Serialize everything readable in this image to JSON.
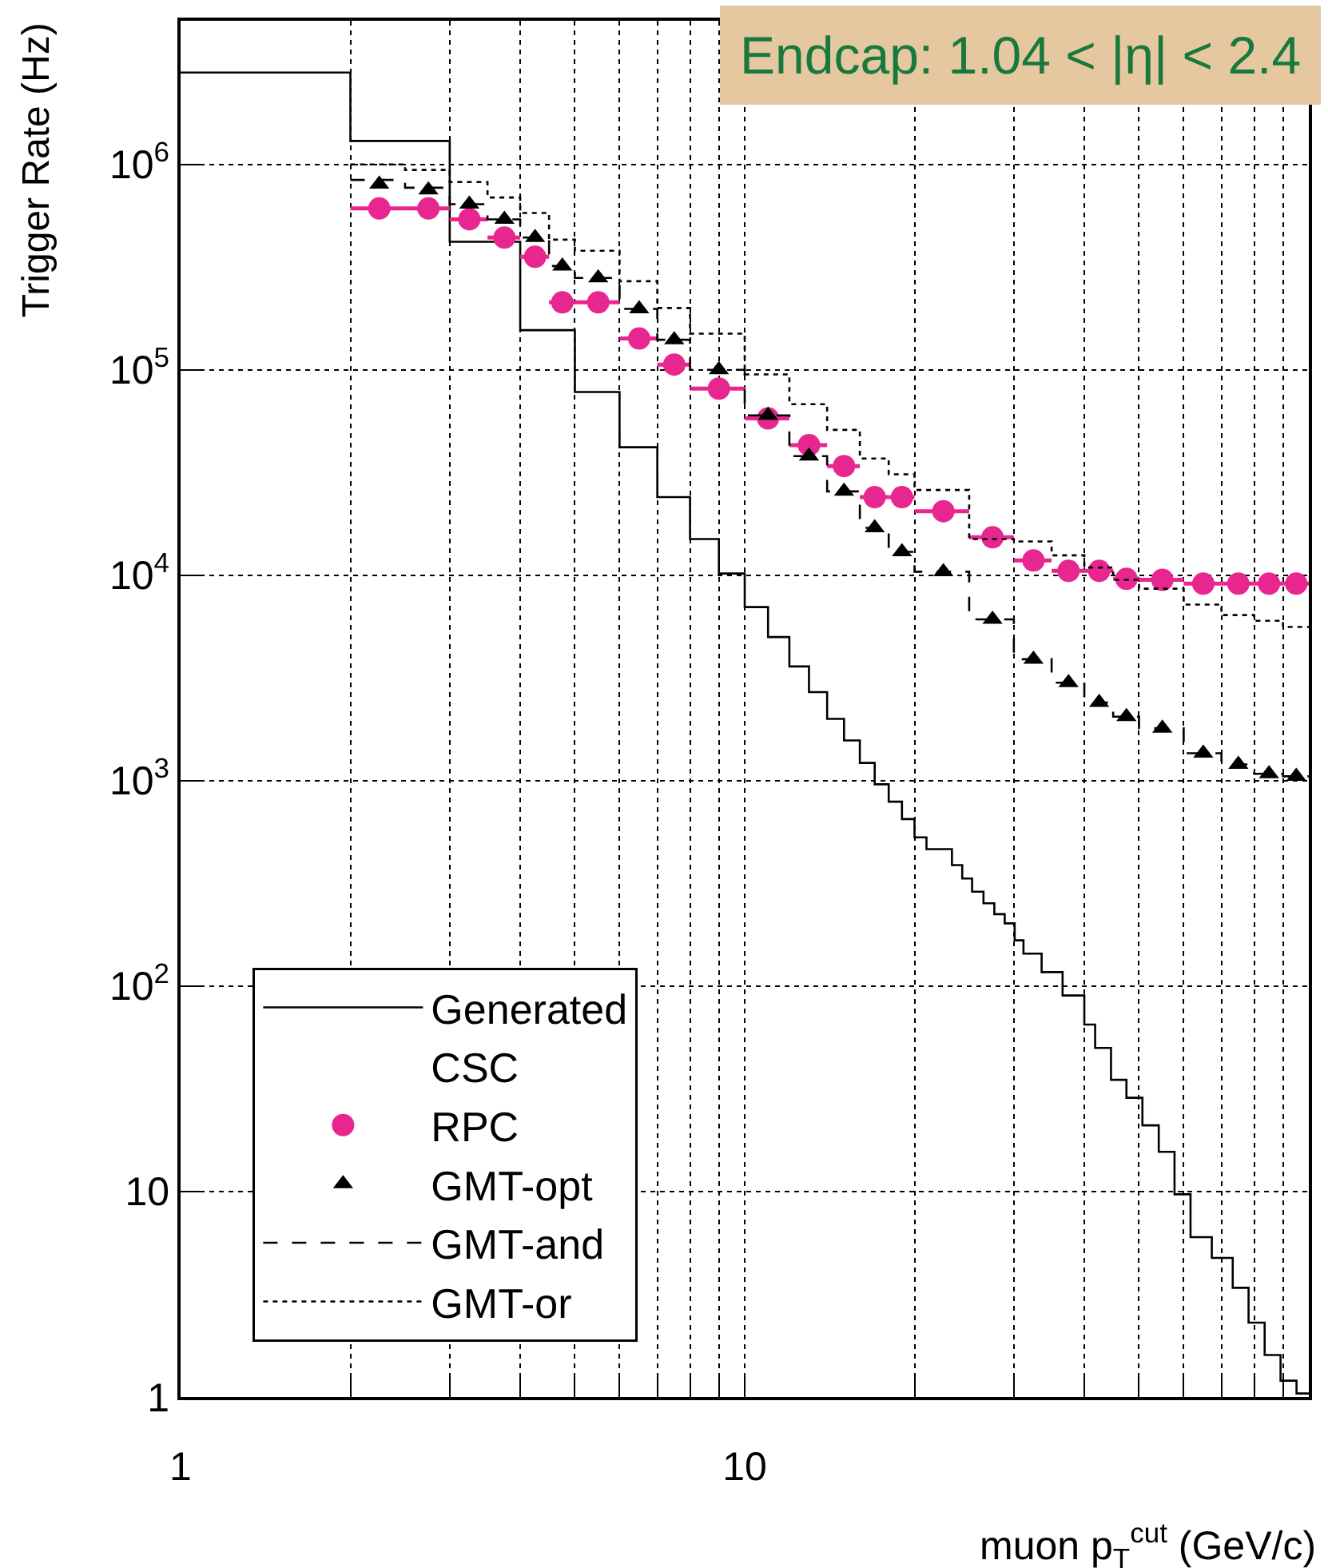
{
  "chart_data": {
    "type": "step",
    "title": "Endcap: 1.04 < |η| < 2.4",
    "xlabel": "muon p$_{T}$$^{cut}$ (GeV/c)",
    "ylabel": "Trigger Rate (Hz)",
    "log": "xy",
    "grid": true,
    "legend": "bottom left",
    "xlim": [
      1,
      100
    ],
    "xticks": [
      1,
      {
        "value": 2,
        "label": null
      },
      {
        "value": 3,
        "label": null
      },
      {
        "value": 4,
        "label": null
      },
      {
        "value": 5,
        "label": null
      },
      {
        "value": 6,
        "label": null
      },
      {
        "value": 7,
        "label": null
      },
      {
        "value": 8,
        "label": null
      },
      {
        "value": 9,
        "label": null
      },
      10,
      {
        "value": 20,
        "label": null
      },
      {
        "value": 30,
        "label": null
      },
      {
        "value": 40,
        "label": null
      },
      {
        "value": 50,
        "label": null
      },
      {
        "value": 60,
        "label": null
      },
      {
        "value": 70,
        "label": null
      },
      {
        "value": 80,
        "label": null
      },
      {
        "value": 90,
        "label": null
      }
    ],
    "ylim": [
      1,
      5000000
    ],
    "yticks": [
      1,
      10,
      {
        "value": 100,
        "label": "10$^{2}$"
      },
      {
        "value": 1000,
        "label": "10$^{3}$"
      },
      {
        "value": 10000,
        "label": "10$^{4}$"
      },
      {
        "value": 100000,
        "label": "10$^{5}$"
      },
      {
        "value": 1000000,
        "label": "10$^{6}$"
      }
    ],
    "series": [
      {
        "name": "Generated",
        "color": "#000000",
        "line_style": "solid",
        "marker": "none",
        "x": [
          1,
          2,
          3,
          4,
          5,
          6,
          7,
          8,
          9,
          10,
          11,
          12,
          13,
          14,
          15,
          16,
          17,
          18,
          19,
          20,
          21,
          23.3,
          24.3,
          25.3,
          26.5,
          27.7,
          28.9,
          30.1,
          31.2,
          33.6,
          36.6,
          40,
          41.8,
          44.6,
          47.5,
          50.7,
          54.2,
          57.8,
          61.7,
          67.3,
          73.3,
          78.2,
          83.5,
          89.1,
          95.1,
          100
        ],
        "values": [
          2800000,
          1300000,
          420000,
          156000,
          78000,
          42000,
          24000,
          15000,
          10200,
          7000,
          5000,
          3600,
          2700,
          2000,
          1570,
          1220,
          960,
          790,
          650,
          530,
          464,
          388,
          334,
          288,
          253,
          224,
          202,
          167,
          144,
          117,
          90,
          65,
          50,
          35,
          28.6,
          21,
          15.6,
          9.7,
          6.0,
          4.75,
          3.4,
          2.3,
          1.6,
          1.2,
          1.04,
          1.04
        ]
      },
      {
        "name": "CSC"
      },
      {
        "name": "RPC",
        "type": "scatter",
        "color": "#e8268f",
        "marker": "circle",
        "x": [
          2.25,
          2.75,
          3.25,
          3.75,
          4.25,
          4.75,
          5.5,
          6.5,
          7.5,
          9,
          11,
          13,
          15,
          17,
          19,
          22.5,
          27.5,
          32.5,
          37.5,
          42.5,
          47.5,
          55,
          65,
          75,
          85,
          95
        ],
        "values": [
          610000,
          610000,
          540000,
          440000,
          355000,
          213000,
          213000,
          142000,
          106000,
          81000,
          58000,
          43000,
          34000,
          24000,
          24000,
          20500,
          15300,
          11800,
          10500,
          10500,
          9600,
          9500,
          9100,
          9100,
          9100,
          9100
        ],
        "xerrors": [
          0.25,
          0.25,
          0.25,
          0.25,
          0.25,
          0.25,
          0.5,
          0.5,
          0.5,
          1,
          1,
          1,
          1,
          1,
          1,
          2.5,
          2.5,
          2.5,
          2.5,
          2.5,
          2.5,
          5,
          5,
          5,
          5,
          5
        ]
      },
      {
        "name": "GMT-opt",
        "type": "scatter",
        "color": "#000000",
        "marker": "triangle",
        "x": [
          2.25,
          2.75,
          3.25,
          3.75,
          4.25,
          4.75,
          5.5,
          6.5,
          7.5,
          9,
          11,
          13,
          15,
          17,
          19,
          22.5,
          27.5,
          32.5,
          37.5,
          42.5,
          47.5,
          55,
          65,
          75,
          85,
          95
        ],
        "values": [
          800000,
          750000,
          640000,
          540000,
          440000,
          320000,
          280000,
          198000,
          140000,
          100000,
          60000,
          38000,
          25600,
          17000,
          13000,
          10400,
          6100,
          3900,
          3000,
          2400,
          2050,
          1800,
          1360,
          1200,
          1080,
          1050
        ]
      },
      {
        "name": "GMT-and",
        "color": "#000000",
        "line_style": "dashed",
        "marker": "none",
        "x": [
          2,
          2.5,
          3,
          3.5,
          4,
          4.5,
          5,
          6,
          7,
          8,
          10,
          12,
          14,
          16,
          18,
          20,
          25,
          30,
          35,
          40,
          45,
          50,
          60,
          70,
          80,
          90,
          100
        ],
        "values": [
          840000,
          770000,
          640000,
          540000,
          440000,
          320000,
          280000,
          198000,
          140000,
          100000,
          60000,
          38000,
          25600,
          17000,
          13000,
          10400,
          6100,
          3900,
          3000,
          2400,
          2050,
          1800,
          1360,
          1200,
          1080,
          1050,
          1050
        ]
      },
      {
        "name": "GMT-or",
        "color": "#000000",
        "line_style": "dotted",
        "marker": "none",
        "x": [
          2,
          2.5,
          3,
          3.5,
          4,
          4.5,
          5,
          6,
          7,
          8,
          10,
          12,
          14,
          16,
          18,
          20,
          25,
          30,
          35,
          40,
          45,
          50,
          60,
          70,
          80,
          90,
          100
        ],
        "values": [
          1000000,
          940000,
          820000,
          690000,
          580000,
          430000,
          380000,
          270000,
          200000,
          150000,
          95000,
          68000,
          51000,
          37000,
          31000,
          26000,
          15000,
          14600,
          12500,
          10900,
          9500,
          8600,
          7200,
          6400,
          6000,
          5600,
          5600
        ]
      }
    ]
  }
}
